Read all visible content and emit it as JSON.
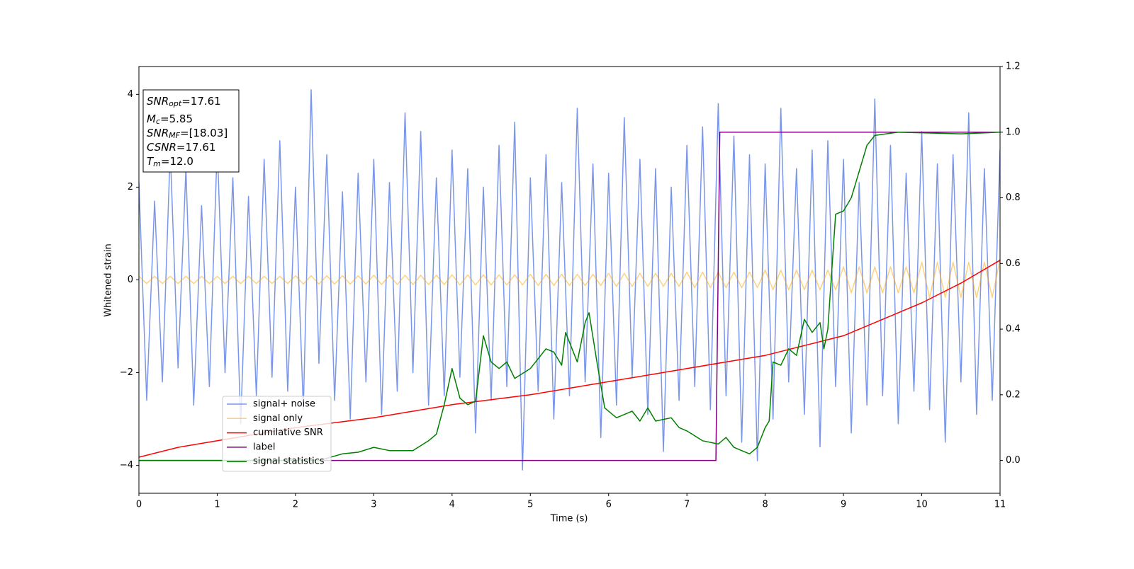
{
  "chart_data": {
    "type": "line",
    "xlabel": "Time (s)",
    "ylabel": "Whitened strain",
    "xlim": [
      0,
      11
    ],
    "xticks": [
      0,
      1,
      2,
      3,
      4,
      5,
      6,
      7,
      8,
      9,
      10,
      11
    ],
    "ylim": [
      -4.6,
      4.6
    ],
    "yticks": [
      {
        "value": -4,
        "label": "−4"
      },
      {
        "value": -2,
        "label": "−2"
      },
      0,
      2,
      4
    ],
    "y2lim": [
      -0.1,
      1.2
    ],
    "y2ticks": [
      {
        "value": 0,
        "label": "0.0"
      },
      0.2,
      0.4,
      0.6,
      0.8,
      {
        "value": 1,
        "label": "1.0"
      },
      1.2
    ],
    "legend": "lower left",
    "annotation": {
      "lines": [
        {
          "main": "SNR",
          "sub": "opt",
          "rest": "=17.61"
        },
        {
          "main": "M",
          "sub": "c",
          "rest": "=5.85"
        },
        {
          "main": "SNR",
          "sub": "MF",
          "rest": "=[18.03]"
        },
        {
          "main": "CSNR",
          "sub": null,
          "rest": "=17.61"
        },
        {
          "main": "T",
          "sub": "m",
          "rest": "=12.0"
        }
      ]
    },
    "x": [
      0,
      0.1,
      0.2,
      0.3,
      0.4,
      0.5,
      0.6,
      0.7,
      0.8,
      0.9,
      1,
      1.1,
      1.2,
      1.3,
      1.4,
      1.5,
      1.6,
      1.7,
      1.8,
      1.9,
      2,
      2.1,
      2.2,
      2.3,
      2.4,
      2.5,
      2.6,
      2.7,
      2.8,
      2.9,
      3,
      3.1,
      3.2,
      3.3,
      3.4,
      3.5,
      3.6,
      3.7,
      3.8,
      3.9,
      4,
      4.1,
      4.2,
      4.3,
      4.4,
      4.5,
      4.6,
      4.7,
      4.8,
      4.9,
      5,
      5.1,
      5.2,
      5.3,
      5.4,
      5.5,
      5.6,
      5.7,
      5.8,
      5.9,
      6,
      6.1,
      6.2,
      6.3,
      6.4,
      6.5,
      6.6,
      6.7,
      6.8,
      6.9,
      7,
      7.1,
      7.2,
      7.3,
      7.4,
      7.5,
      7.6,
      7.7,
      7.8,
      7.9,
      8,
      8.1,
      8.2,
      8.3,
      8.4,
      8.5,
      8.6,
      8.7,
      8.8,
      8.9,
      9,
      9.1,
      9.2,
      9.3,
      9.4,
      9.5,
      9.6,
      9.7,
      9.8,
      9.9,
      10,
      10.1,
      10.2,
      10.3,
      10.4,
      10.5,
      10.6,
      10.7,
      10.8,
      10.9,
      11
    ],
    "series": [
      {
        "name": "signal+ noise",
        "color": "#4169e1",
        "values": [
          2.1,
          -2.6,
          1.7,
          -2.2,
          2.8,
          -1.9,
          2.4,
          -2.7,
          1.6,
          -2.3,
          2.9,
          -2.0,
          2.2,
          -3.1,
          1.8,
          -2.5,
          2.6,
          -2.1,
          3.0,
          -2.4,
          2.0,
          -2.8,
          4.1,
          -1.8,
          2.7,
          -2.6,
          1.9,
          -3.0,
          2.3,
          -2.2,
          2.6,
          -2.9,
          2.1,
          -2.4,
          3.6,
          -2.0,
          3.2,
          -2.7,
          2.2,
          -2.5,
          2.8,
          -2.1,
          2.4,
          -3.3,
          2.0,
          -2.6,
          2.9,
          -2.3,
          3.4,
          -4.1,
          2.2,
          -2.4,
          2.7,
          -3.0,
          2.1,
          -2.5,
          3.7,
          -2.2,
          2.5,
          -3.4,
          2.3,
          -2.7,
          3.5,
          -2.1,
          2.6,
          -2.9,
          2.4,
          -3.7,
          2.0,
          -2.6,
          2.9,
          -2.3,
          3.3,
          -2.8,
          3.8,
          -2.5,
          3.1,
          -3.5,
          2.7,
          -3.9,
          2.5,
          -3.0,
          3.7,
          -2.2,
          2.4,
          -2.9,
          2.8,
          -3.6,
          3.0,
          -2.3,
          2.6,
          -3.3,
          2.1,
          -2.7,
          3.9,
          -2.5,
          2.9,
          -3.1,
          2.3,
          -2.4,
          3.2,
          -2.8,
          2.5,
          -3.5,
          2.7,
          -2.2,
          3.6,
          -2.9,
          2.4,
          -2.6,
          2.8
        ]
      },
      {
        "name": "signal only",
        "color": "#ffa500",
        "values": [
          0.08,
          -0.08,
          0.08,
          -0.08,
          0.08,
          -0.08,
          0.08,
          -0.08,
          0.08,
          -0.08,
          0.08,
          -0.08,
          0.08,
          -0.08,
          0.08,
          -0.08,
          0.08,
          -0.08,
          0.08,
          -0.08,
          0.09,
          -0.09,
          0.09,
          -0.09,
          0.09,
          -0.09,
          0.09,
          -0.09,
          0.09,
          -0.09,
          0.1,
          -0.1,
          0.1,
          -0.1,
          0.1,
          -0.1,
          0.1,
          -0.1,
          0.1,
          -0.1,
          0.11,
          -0.11,
          0.11,
          -0.11,
          0.11,
          -0.11,
          0.11,
          -0.11,
          0.11,
          -0.11,
          0.12,
          -0.12,
          0.12,
          -0.12,
          0.12,
          -0.12,
          0.12,
          -0.12,
          0.12,
          -0.12,
          0.14,
          -0.14,
          0.14,
          -0.14,
          0.14,
          -0.14,
          0.14,
          -0.14,
          0.14,
          -0.14,
          0.17,
          -0.17,
          0.17,
          -0.17,
          0.17,
          -0.17,
          0.17,
          -0.17,
          0.17,
          -0.17,
          0.21,
          -0.21,
          0.21,
          -0.21,
          0.21,
          -0.21,
          0.21,
          -0.21,
          0.21,
          -0.21,
          0.28,
          -0.28,
          0.28,
          -0.28,
          0.28,
          -0.28,
          0.28,
          -0.28,
          0.28,
          -0.28,
          0.38,
          -0.38,
          0.38,
          -0.38,
          0.38,
          -0.38,
          0.38,
          -0.38,
          0.38,
          -0.38,
          0.45
        ]
      },
      {
        "name": "cumilative SNR",
        "color": "#ff0000",
        "axis": "y2",
        "x": [
          0,
          0.5,
          1,
          2,
          3,
          4,
          5,
          6,
          7,
          8,
          9,
          10,
          10.5,
          11
        ],
        "values": [
          0.01,
          0.04,
          0.06,
          0.1,
          0.13,
          0.17,
          0.2,
          0.24,
          0.28,
          0.32,
          0.38,
          0.48,
          0.54,
          0.61
        ]
      },
      {
        "name": "label",
        "color": "#800080",
        "axis": "y2",
        "x": [
          0,
          7.37,
          7.42,
          11
        ],
        "values": [
          0,
          0,
          1,
          1
        ]
      },
      {
        "name": "signal statistics",
        "color": "#008000",
        "axis": "y2",
        "x": [
          0,
          2.3,
          2.6,
          2.8,
          3.0,
          3.2,
          3.5,
          3.7,
          3.8,
          3.9,
          4.0,
          4.1,
          4.2,
          4.3,
          4.4,
          4.5,
          4.6,
          4.7,
          4.8,
          5.0,
          5.2,
          5.3,
          5.4,
          5.45,
          5.6,
          5.7,
          5.75,
          5.85,
          5.95,
          6.1,
          6.2,
          6.3,
          6.4,
          6.5,
          6.6,
          6.8,
          6.9,
          7.0,
          7.2,
          7.4,
          7.5,
          7.6,
          7.8,
          7.9,
          8.0,
          8.05,
          8.1,
          8.2,
          8.3,
          8.4,
          8.5,
          8.6,
          8.7,
          8.75,
          8.8,
          8.9,
          9.0,
          9.1,
          9.2,
          9.3,
          9.4,
          9.7,
          10.5,
          11
        ],
        "values": [
          0,
          0,
          0.02,
          0.025,
          0.04,
          0.03,
          0.03,
          0.06,
          0.08,
          0.17,
          0.28,
          0.19,
          0.17,
          0.18,
          0.38,
          0.3,
          0.28,
          0.3,
          0.25,
          0.28,
          0.34,
          0.33,
          0.29,
          0.39,
          0.3,
          0.42,
          0.45,
          0.3,
          0.16,
          0.13,
          0.14,
          0.15,
          0.12,
          0.16,
          0.12,
          0.13,
          0.1,
          0.09,
          0.06,
          0.05,
          0.07,
          0.04,
          0.02,
          0.04,
          0.1,
          0.12,
          0.3,
          0.29,
          0.34,
          0.32,
          0.43,
          0.39,
          0.42,
          0.34,
          0.4,
          0.75,
          0.76,
          0.8,
          0.88,
          0.96,
          0.99,
          1.0,
          0.995,
          1.0
        ]
      }
    ]
  }
}
